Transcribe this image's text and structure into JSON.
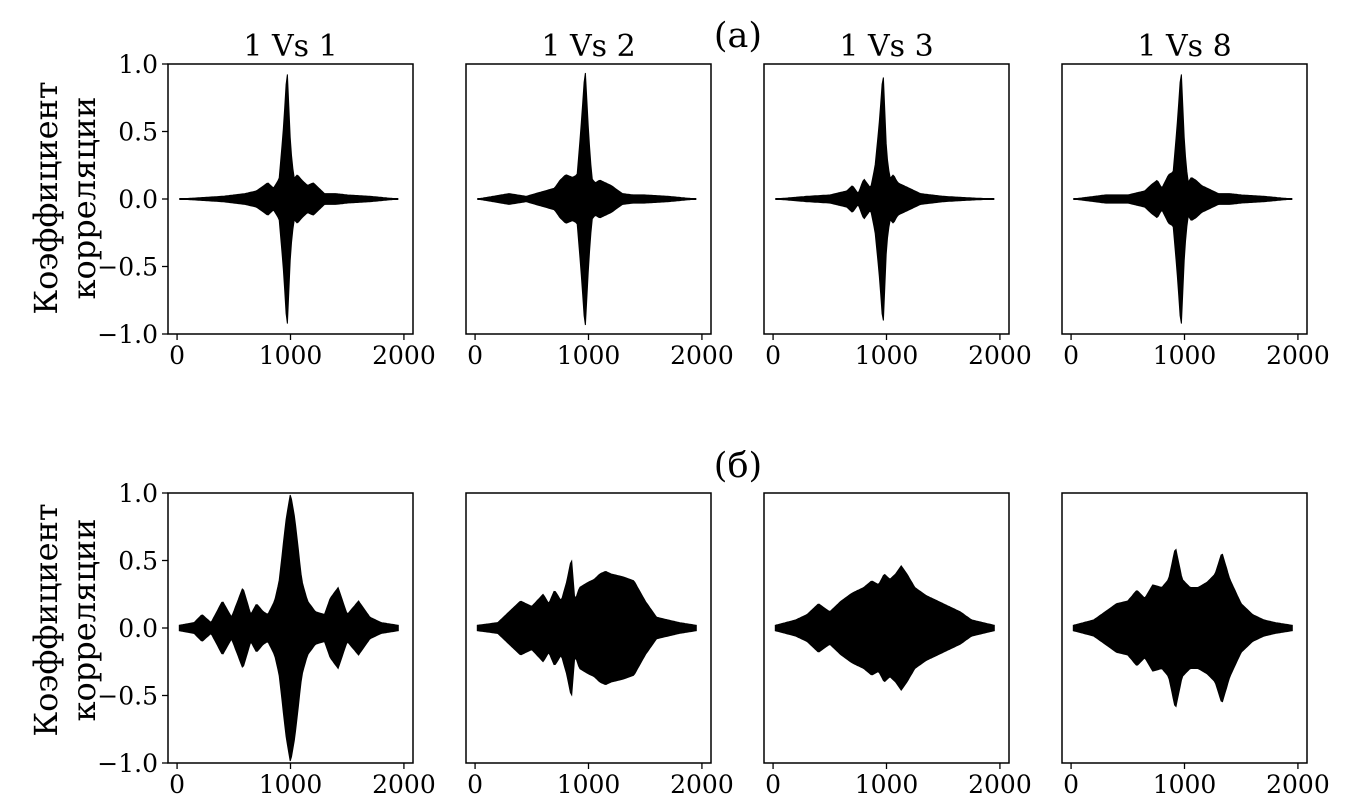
{
  "figure": {
    "rows": [
      {
        "row_label": "(а)"
      },
      {
        "row_label": "(б)"
      }
    ],
    "column_titles": [
      "1 Vs 1",
      "1 Vs 2",
      "1 Vs 3",
      "1 Vs 8"
    ],
    "ylabel_line1": "Коэффициент",
    "ylabel_line2": "корреляции",
    "x_ticks": [
      0,
      1000,
      2000
    ],
    "y_ticks": [
      -1.0,
      -0.5,
      0.0,
      0.5,
      1.0
    ],
    "y_tick_labels": [
      "−1.0",
      "−0.5",
      "0.0",
      "0.5",
      "1.0"
    ],
    "x_tick_labels": [
      "0",
      "1000",
      "2000"
    ],
    "colors": {
      "fill": "#000000",
      "background": "#ffffff",
      "axes": "#000000"
    }
  },
  "chart_data": [
    {
      "type": "area",
      "row_label": "(а)",
      "title": "1 Vs 1",
      "xlim": [
        -80,
        2080
      ],
      "ylim": [
        -1.0,
        1.0
      ],
      "envelope_x": [
        20,
        400,
        600,
        700,
        800,
        850,
        900,
        940,
        970,
        1000,
        1030,
        1060,
        1100,
        1150,
        1200,
        1300,
        1400,
        1500,
        1700,
        1950
      ],
      "envelope_y": [
        0.0,
        0.02,
        0.04,
        0.06,
        0.12,
        0.08,
        0.15,
        0.55,
        0.98,
        0.4,
        0.15,
        0.18,
        0.14,
        0.1,
        0.12,
        0.04,
        0.04,
        0.03,
        0.02,
        0.0
      ]
    },
    {
      "type": "area",
      "row_label": "(а)",
      "title": "1 Vs 2",
      "xlim": [
        -80,
        2080
      ],
      "ylim": [
        -1.0,
        1.0
      ],
      "envelope_x": [
        20,
        300,
        450,
        700,
        750,
        800,
        860,
        900,
        940,
        970,
        1000,
        1030,
        1060,
        1100,
        1150,
        1200,
        1300,
        1400,
        1500,
        1700,
        1950
      ],
      "envelope_y": [
        0.0,
        0.04,
        0.02,
        0.08,
        0.14,
        0.18,
        0.16,
        0.18,
        0.6,
        0.98,
        0.5,
        0.15,
        0.12,
        0.14,
        0.12,
        0.1,
        0.04,
        0.03,
        0.03,
        0.02,
        0.0
      ]
    },
    {
      "type": "area",
      "row_label": "(а)",
      "title": "1 Vs 3",
      "xlim": [
        -80,
        2080
      ],
      "ylim": [
        -1.0,
        1.0
      ],
      "envelope_x": [
        20,
        300,
        500,
        650,
        700,
        750,
        800,
        860,
        900,
        940,
        970,
        1000,
        1030,
        1060,
        1100,
        1150,
        1200,
        1300,
        1400,
        1500,
        1700,
        1950
      ],
      "envelope_y": [
        0.0,
        0.02,
        0.03,
        0.06,
        0.1,
        0.04,
        0.15,
        0.08,
        0.25,
        0.6,
        0.96,
        0.35,
        0.15,
        0.18,
        0.12,
        0.1,
        0.08,
        0.04,
        0.03,
        0.02,
        0.01,
        0.0
      ]
    },
    {
      "type": "area",
      "row_label": "(а)",
      "title": "1 Vs 8",
      "xlim": [
        -80,
        2080
      ],
      "ylim": [
        -1.0,
        1.0
      ],
      "envelope_x": [
        20,
        300,
        500,
        650,
        700,
        760,
        800,
        860,
        900,
        940,
        970,
        1000,
        1030,
        1060,
        1100,
        1150,
        1200,
        1300,
        1400,
        1500,
        1700,
        1950
      ],
      "envelope_y": [
        0.0,
        0.03,
        0.03,
        0.06,
        0.1,
        0.14,
        0.08,
        0.18,
        0.2,
        0.6,
        0.98,
        0.4,
        0.12,
        0.16,
        0.14,
        0.1,
        0.08,
        0.04,
        0.04,
        0.03,
        0.02,
        0.0
      ]
    },
    {
      "type": "area",
      "row_label": "(б)",
      "title": "1 Vs 1",
      "xlim": [
        -80,
        2080
      ],
      "ylim": [
        -1.0,
        1.0
      ],
      "envelope_x": [
        20,
        150,
        220,
        300,
        400,
        480,
        580,
        650,
        700,
        760,
        800,
        860,
        900,
        960,
        1000,
        1040,
        1100,
        1150,
        1220,
        1300,
        1350,
        1420,
        1500,
        1600,
        1700,
        1800,
        1950
      ],
      "envelope_y": [
        0.02,
        0.04,
        0.1,
        0.04,
        0.2,
        0.08,
        0.3,
        0.1,
        0.18,
        0.12,
        0.1,
        0.2,
        0.35,
        0.8,
        1.0,
        0.8,
        0.35,
        0.2,
        0.12,
        0.1,
        0.22,
        0.3,
        0.1,
        0.2,
        0.08,
        0.04,
        0.02
      ]
    },
    {
      "type": "area",
      "row_label": "(б)",
      "title": "1 Vs 2",
      "xlim": [
        -80,
        2080
      ],
      "ylim": [
        -1.0,
        1.0
      ],
      "envelope_x": [
        20,
        200,
        300,
        400,
        500,
        600,
        650,
        700,
        760,
        810,
        850,
        880,
        920,
        960,
        1000,
        1050,
        1100,
        1150,
        1200,
        1300,
        1400,
        1500,
        1600,
        1700,
        1800,
        1950
      ],
      "envelope_y": [
        0.02,
        0.04,
        0.12,
        0.2,
        0.16,
        0.25,
        0.18,
        0.28,
        0.2,
        0.35,
        0.52,
        0.2,
        0.3,
        0.32,
        0.34,
        0.36,
        0.4,
        0.42,
        0.4,
        0.38,
        0.35,
        0.2,
        0.08,
        0.06,
        0.04,
        0.02
      ]
    },
    {
      "type": "area",
      "row_label": "(б)",
      "title": "1 Vs 3",
      "xlim": [
        -80,
        2080
      ],
      "ylim": [
        -1.0,
        1.0
      ],
      "envelope_x": [
        20,
        200,
        300,
        400,
        500,
        600,
        700,
        800,
        870,
        930,
        980,
        1030,
        1080,
        1130,
        1180,
        1250,
        1350,
        1450,
        1550,
        1650,
        1750,
        1850,
        1950
      ],
      "envelope_y": [
        0.02,
        0.06,
        0.1,
        0.18,
        0.12,
        0.2,
        0.26,
        0.3,
        0.35,
        0.32,
        0.4,
        0.36,
        0.4,
        0.46,
        0.4,
        0.3,
        0.24,
        0.2,
        0.16,
        0.12,
        0.06,
        0.04,
        0.02
      ]
    },
    {
      "type": "area",
      "row_label": "(б)",
      "title": "1 Vs 8",
      "xlim": [
        -80,
        2080
      ],
      "ylim": [
        -1.0,
        1.0
      ],
      "envelope_x": [
        20,
        200,
        300,
        400,
        500,
        580,
        650,
        720,
        800,
        860,
        920,
        980,
        1050,
        1120,
        1200,
        1270,
        1330,
        1400,
        1500,
        1600,
        1700,
        1800,
        1950
      ],
      "envelope_y": [
        0.02,
        0.06,
        0.12,
        0.18,
        0.2,
        0.28,
        0.22,
        0.32,
        0.3,
        0.36,
        0.6,
        0.36,
        0.3,
        0.3,
        0.34,
        0.4,
        0.56,
        0.36,
        0.18,
        0.1,
        0.06,
        0.04,
        0.02
      ]
    }
  ]
}
